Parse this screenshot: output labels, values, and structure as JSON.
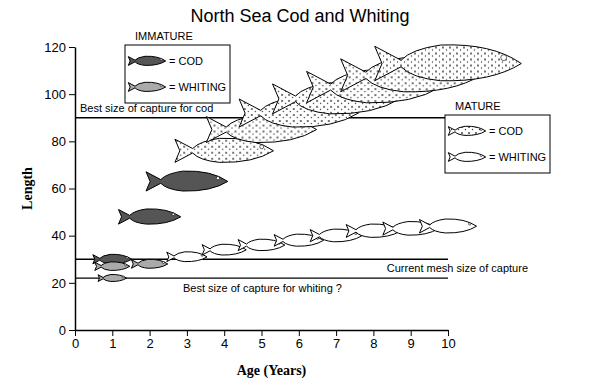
{
  "chart_data": {
    "type": "scatter",
    "title": "North Sea Cod and Whiting",
    "x_label": "Age (Years)",
    "y_label": "Length",
    "xlim": [
      0,
      10
    ],
    "ylim": [
      0,
      120
    ],
    "xticks": [
      0,
      1,
      2,
      3,
      4,
      5,
      6,
      7,
      8,
      9,
      10
    ],
    "yticks": [
      0,
      20,
      40,
      60,
      80,
      100,
      120
    ],
    "grid": false,
    "series": [
      {
        "name": "= COD",
        "group": "IMMATURE",
        "color": "#555555",
        "marker": "fish",
        "x": [
          1,
          2,
          3
        ],
        "values": [
          30,
          48,
          63
        ]
      },
      {
        "name": "= WHITING",
        "group": "IMMATURE",
        "color": "#aaaaaa",
        "marker": "fish",
        "x": [
          1,
          1,
          2
        ],
        "values": [
          27,
          22,
          28
        ]
      },
      {
        "name": "= COD",
        "group": "MATURE",
        "color": "#ffffff",
        "marker": "spotted-fish",
        "x": [
          4,
          5,
          6,
          7,
          8,
          9,
          10
        ],
        "values": [
          76,
          85,
          92,
          98,
          103,
          108,
          113
        ]
      },
      {
        "name": "= WHITING",
        "group": "MATURE",
        "color": "#ffffff",
        "marker": "fish",
        "x": [
          3,
          4,
          5,
          6,
          7,
          8,
          9,
          10
        ],
        "values": [
          31,
          34,
          36,
          38,
          40,
          42,
          43,
          44
        ]
      }
    ],
    "lines": [
      {
        "value": 90,
        "label": "Best size of capture for cod"
      },
      {
        "value": 30,
        "label": "Current mesh size of capture"
      },
      {
        "value": 22,
        "label": "Best size of capture for whiting ?"
      }
    ]
  }
}
